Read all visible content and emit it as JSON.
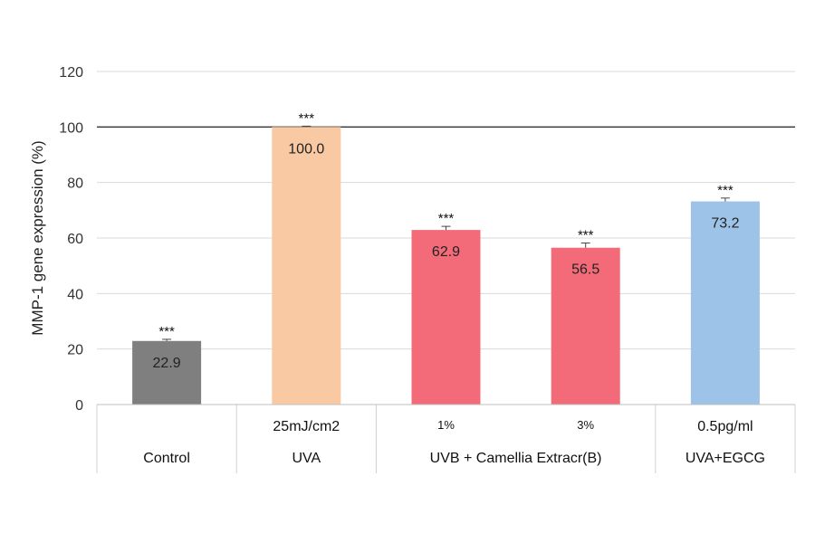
{
  "chart_data": {
    "type": "bar",
    "ylabel": "MMP-1 gene expression (%)",
    "ylim": [
      0,
      120
    ],
    "yticks": [
      "0",
      "20",
      "40",
      "60",
      "80",
      "100",
      "120"
    ],
    "reference_line": 100,
    "bars": [
      {
        "value": 22.9,
        "value_label": "22.9",
        "error": 0.6,
        "significance": "***",
        "color": "#7f7f7f"
      },
      {
        "value": 100.0,
        "value_label": "100.0",
        "error": 0.3,
        "significance": "***",
        "color": "#f9c9a3"
      },
      {
        "value": 62.9,
        "value_label": "62.9",
        "error": 1.3,
        "significance": "***",
        "color": "#f36b78"
      },
      {
        "value": 56.5,
        "value_label": "56.5",
        "error": 1.7,
        "significance": "***",
        "color": "#f36b78"
      },
      {
        "value": 73.2,
        "value_label": "73.2",
        "error": 1.2,
        "significance": "***",
        "color": "#9dc3e8"
      }
    ],
    "dose_labels": [
      "",
      "25mJ/cm2",
      "1%",
      "3%",
      "0.5pg/ml"
    ],
    "group_labels": [
      {
        "label": "Control",
        "span": [
          0,
          0
        ]
      },
      {
        "label": "UVA",
        "span": [
          1,
          1
        ]
      },
      {
        "label": "UVB + Camellia Extracr(B)",
        "span": [
          2,
          3
        ]
      },
      {
        "label": "UVA+EGCG",
        "span": [
          4,
          4
        ]
      }
    ],
    "grid": true
  }
}
